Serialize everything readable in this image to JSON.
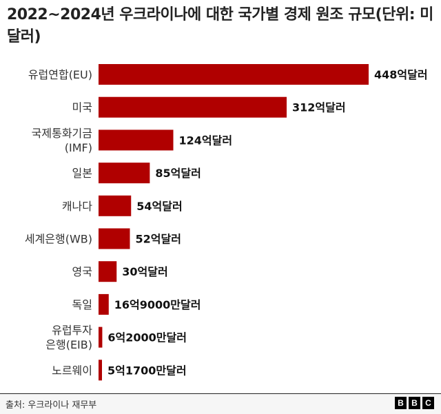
{
  "chart_data": {
    "type": "bar",
    "orientation": "horizontal",
    "title": "2022~2024년 우크라이나에 대한 국가별 경제 원조 규모(단위: 미 달러)",
    "categories": [
      [
        "유럽연합(EU)"
      ],
      [
        "미국"
      ],
      [
        "국제통화기금",
        "(IMF)"
      ],
      [
        "일본"
      ],
      [
        "캐나다"
      ],
      [
        "세계은행(WB)"
      ],
      [
        "영국"
      ],
      [
        "독일"
      ],
      [
        "유럽투자",
        "은행(EIB)"
      ],
      [
        "노르웨이"
      ]
    ],
    "values_100m_usd": [
      448,
      312,
      124,
      85,
      54,
      52,
      30,
      16.9,
      6.2,
      5.17
    ],
    "data_labels": [
      "448억달러",
      "312억달러",
      "124억달러",
      "85억달러",
      "54억달러",
      "52억달러",
      "30억달러",
      "16억9000만달러",
      "6억2000만달러",
      "5억1700만달러"
    ],
    "bar_color": "#b00000",
    "grid": false
  },
  "footer": {
    "source": "출처: 우크라이나 재무부",
    "logo": [
      "B",
      "B",
      "C"
    ]
  }
}
